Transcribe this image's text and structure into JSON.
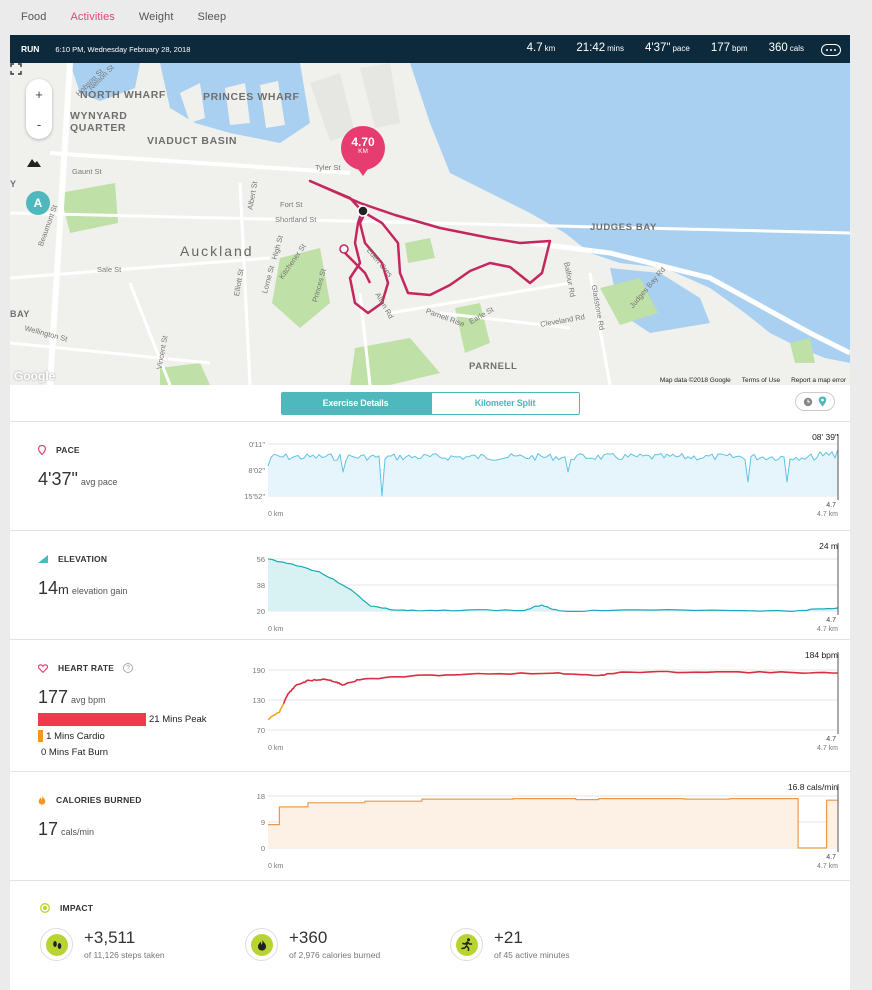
{
  "nav": {
    "items": [
      "Food",
      "Activities",
      "Weight",
      "Sleep"
    ],
    "active": "Activities"
  },
  "run": {
    "type": "RUN",
    "datetime": "6:10 PM, Wednesday February 28, 2018",
    "stats": [
      {
        "value": "4.7",
        "unit": "km"
      },
      {
        "value": "21:42",
        "unit": "mins"
      },
      {
        "value": "4'37\"",
        "unit": "pace"
      },
      {
        "value": "177",
        "unit": "bpm"
      },
      {
        "value": "360",
        "unit": "cals"
      }
    ]
  },
  "map": {
    "zoom_in": "+",
    "zoom_out": "-",
    "badge_letter": "A",
    "km_value": "4.70",
    "km_unit": "KM",
    "labels": {
      "north_wharf": "NORTH WHARF",
      "princes_wharf": "PRINCES WHARF",
      "wynyard": "WYNYARD",
      "quarter": "QUARTER",
      "viaduct": "VIADUCT BASIN",
      "auckland": "Auckland",
      "judges_bay": "JUDGES BAY",
      "parnell": "PARNELL",
      "bay": "BAY",
      "y": "Y"
    },
    "streets": {
      "gaunt": "Gaunt St",
      "tyler": "Tyler St",
      "fort": "Fort St",
      "shortland": "Shortland St",
      "albert": "Albert St",
      "hobson": "Hobson St",
      "nelson": "Nelson St",
      "high": "High St",
      "kitchener": "Kitchener St",
      "princes": "Princes St",
      "eden": "Eden Cres",
      "alten": "Alten Rd",
      "parnell_rise": "Parnell Rise",
      "earle": "Earle St",
      "cleveland": "Cleveland Rd",
      "balfour": "Balfour Rd",
      "gladstone": "Gladstone Rd",
      "judges_bay_rd": "Judges Bay Rd",
      "sale": "Sale St",
      "wellington": "Wellington St",
      "vincent": "Vincent St",
      "beaumont": "Beaumont St",
      "elliott": "Elliott St",
      "lorne": "Lorne St"
    },
    "google": "Google",
    "map_data": "Map data ©2018 Google",
    "terms": "Terms of Use",
    "report": "Report a map error"
  },
  "tabs": {
    "exercise": "Exercise Details",
    "split": "Kilometer Split"
  },
  "pace": {
    "title": "PACE",
    "value": "4'37\"",
    "label": "avg pace",
    "y_ticks": [
      "0'11\"",
      "8'02\"",
      "15'52\""
    ],
    "peak_label": "08' 39\"",
    "x_start": "0 km",
    "x_end": "4.7 km",
    "end_tick": "4.7"
  },
  "elevation": {
    "title": "ELEVATION",
    "value": "14",
    "value_unit": "m",
    "label": "elevation gain",
    "y_ticks": [
      "56",
      "38",
      "20"
    ],
    "peak_label": "24 m",
    "x_start": "0 km",
    "x_end": "4.7 km",
    "end_tick": "4.7"
  },
  "heart": {
    "title": "HEART RATE",
    "help": "?",
    "value": "177",
    "label": "avg bpm",
    "zones": [
      {
        "label": "21 Mins Peak",
        "color": "#f0394d",
        "minutes": 21
      },
      {
        "label": "1 Mins Cardio",
        "color": "#f5961e",
        "minutes": 1
      },
      {
        "label": "0 Mins Fat Burn",
        "color": "#f5c518",
        "minutes": 0
      }
    ],
    "y_ticks": [
      "190",
      "130",
      "70"
    ],
    "peak_label": "184 bpm",
    "x_start": "0 km",
    "x_end": "4.7 km",
    "end_tick": "4.7"
  },
  "calories": {
    "title": "CALORIES BURNED",
    "value": "17",
    "label": "cals/min",
    "y_ticks": [
      "18",
      "9",
      "0"
    ],
    "peak_label": "16.8 cals/min",
    "x_start": "0 km",
    "x_end": "4.7 km",
    "end_tick": "4.7"
  },
  "impact": {
    "title": "IMPACT",
    "items": [
      {
        "value": "+3,511",
        "sub": "of 11,126 steps taken",
        "icon": "footsteps-icon"
      },
      {
        "value": "+360",
        "sub": "of 2,976 calories burned",
        "icon": "flame-icon"
      },
      {
        "value": "+21",
        "sub": "of 45 active minutes",
        "icon": "running-icon"
      }
    ]
  },
  "colors": {
    "accent": "#4fb8bd",
    "pink": "#e0457b",
    "header": "#0d2a3d",
    "pace_line": "#5ec3e6",
    "elev_line": "#1aa8b8",
    "hr_line": "#d63040",
    "cal_line": "#e79b4a",
    "route": "#c4275f"
  }
}
